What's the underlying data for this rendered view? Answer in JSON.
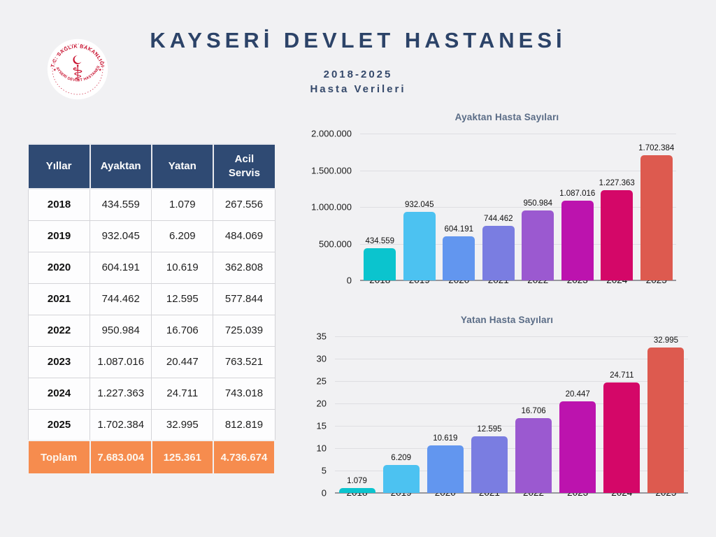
{
  "header": {
    "title": "KAYSERİ DEVLET HASTANESİ",
    "subtitle_line1": "2018-2025",
    "subtitle_line2": "Hasta Verileri",
    "logo": {
      "top_text": "T.C. SAĞLIK BAKANLIĞI",
      "bottom_text": "KAYSERİ DEVLET HASTANESİ"
    }
  },
  "table": {
    "headers": [
      "Yıllar",
      "Ayaktan",
      "Yatan",
      "Acil Servis"
    ],
    "rows": [
      [
        "2018",
        "434.559",
        "1.079",
        "267.556"
      ],
      [
        "2019",
        "932.045",
        "6.209",
        "484.069"
      ],
      [
        "2020",
        "604.191",
        "10.619",
        "362.808"
      ],
      [
        "2021",
        "744.462",
        "12.595",
        "577.844"
      ],
      [
        "2022",
        "950.984",
        "16.706",
        "725.039"
      ],
      [
        "2023",
        "1.087.016",
        "20.447",
        "763.521"
      ],
      [
        "2024",
        "1.227.363",
        "24.711",
        "743.018"
      ],
      [
        "2025",
        "1.702.384",
        "32.995",
        "812.819"
      ]
    ],
    "total_row": [
      "Toplam",
      "7.683.004",
      "125.361",
      "4.736.674"
    ]
  },
  "chart_data": [
    {
      "type": "bar",
      "title": "Ayaktan Hasta Sayıları",
      "categories": [
        "2018",
        "2019",
        "2020",
        "2021",
        "2022",
        "2023",
        "2024",
        "2025"
      ],
      "values": [
        434559,
        932045,
        604191,
        744462,
        950984,
        1087016,
        1227363,
        1702384
      ],
      "value_labels": [
        "434.559",
        "932.045",
        "604.191",
        "744.462",
        "950.984",
        "1.087.016",
        "1.227.363",
        "1.702.384"
      ],
      "ylim": [
        0,
        2000000
      ],
      "yticks": [
        "2.000.000",
        "1.500.000",
        "1.000.000",
        "500.000",
        "0"
      ],
      "grid": true,
      "legend": "none",
      "bar_colors": [
        "#0bc4ce",
        "#4cc2f1",
        "#6296ef",
        "#7a7de1",
        "#9b59d0",
        "#bc13ae",
        "#d40768",
        "#dd5a4f"
      ]
    },
    {
      "type": "bar",
      "title": "Yatan Hasta Sayıları",
      "categories": [
        "2018",
        "2019",
        "2020",
        "2021",
        "2022",
        "2023",
        "2024",
        "2025"
      ],
      "values": [
        1079,
        6209,
        10619,
        12595,
        16706,
        20447,
        24711,
        32995
      ],
      "value_labels": [
        "1.079",
        "6.209",
        "10.619",
        "12.595",
        "16.706",
        "20.447",
        "24.711",
        "32.995"
      ],
      "ylim": [
        0,
        35000
      ],
      "yticks": [
        "35",
        "30",
        "25",
        "20",
        "15",
        "10",
        "5",
        "0"
      ],
      "grid": true,
      "legend": "none",
      "bar_colors": [
        "#0bc4ce",
        "#4cc2f1",
        "#6296ef",
        "#7a7de1",
        "#9b59d0",
        "#bc13ae",
        "#d40768",
        "#dd5a4f"
      ]
    }
  ],
  "colors": {
    "background": "#f1f1f3",
    "title_navy": "#2c4368",
    "table_header_navy": "#2f4a73",
    "total_orange": "#f68c4e",
    "chart_title_slate": "#5a6c86",
    "logo_red": "#c8102e"
  }
}
